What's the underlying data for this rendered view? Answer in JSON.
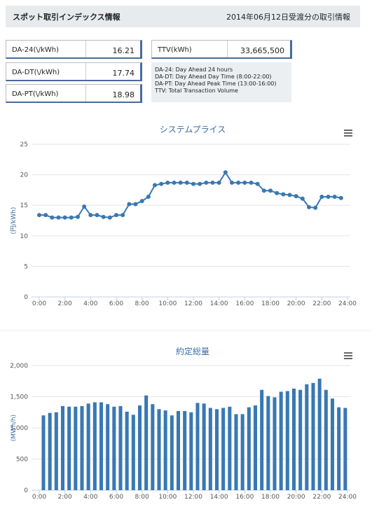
{
  "header": {
    "title": "スポット取引インデックス情報",
    "date": "2014年06月12日受渡分の取引情報"
  },
  "indices": [
    {
      "label": "DA-24(\\/kWh)",
      "value": "16.21"
    },
    {
      "label": "DA-DT(\\/kWh)",
      "value": "17.74"
    },
    {
      "label": "DA-PT(\\/kWh)",
      "value": "18.98"
    }
  ],
  "ttv": {
    "label": "TTV(kWh)",
    "value": "33,665,500"
  },
  "notes": [
    "DA-24: Day Ahead 24 hours",
    "DA-DT: Day Ahead Day Time (8:00-22:00)",
    "DA-PT: Day Ahead Peak Time (13:00-16:00)",
    "TTV: Total Transaction Volume"
  ],
  "chart_data": [
    {
      "type": "line",
      "title": "システムプライス",
      "ylabel": "(円/kWh)",
      "color": "#3878b4",
      "grid": true,
      "x": [
        0,
        0.5,
        1,
        1.5,
        2,
        2.5,
        3,
        3.5,
        4,
        4.5,
        5,
        5.5,
        6,
        6.5,
        7,
        7.5,
        8,
        8.5,
        9,
        9.5,
        10,
        10.5,
        11,
        11.5,
        12,
        12.5,
        13,
        13.5,
        14,
        14.5,
        15,
        15.5,
        16,
        16.5,
        17,
        17.5,
        18,
        18.5,
        19,
        19.5,
        20,
        20.5,
        21,
        21.5,
        22,
        22.5,
        23,
        23.5
      ],
      "values": [
        13.4,
        13.4,
        13.0,
        13.0,
        13.0,
        13.0,
        13.1,
        14.8,
        13.4,
        13.4,
        13.1,
        13.0,
        13.4,
        13.4,
        15.2,
        15.2,
        15.7,
        16.4,
        18.3,
        18.5,
        18.7,
        18.7,
        18.7,
        18.7,
        18.5,
        18.5,
        18.7,
        18.7,
        18.7,
        20.4,
        18.7,
        18.7,
        18.7,
        18.7,
        18.5,
        17.4,
        17.4,
        17.0,
        16.8,
        16.7,
        16.5,
        16.1,
        14.7,
        14.6,
        16.4,
        16.4,
        16.4,
        16.2
      ],
      "xlim": [
        0,
        24
      ],
      "xticks": [
        {
          "value": 0,
          "label": "0:00"
        },
        {
          "value": 2,
          "label": "2:00"
        },
        {
          "value": 4,
          "label": "4:00"
        },
        {
          "value": 6,
          "label": "6:00"
        },
        {
          "value": 8,
          "label": "8:00"
        },
        {
          "value": 10,
          "label": "10:00"
        },
        {
          "value": 12,
          "label": "12:00"
        },
        {
          "value": 14,
          "label": "14:00"
        },
        {
          "value": 16,
          "label": "16:00"
        },
        {
          "value": 18,
          "label": "18:00"
        },
        {
          "value": 20,
          "label": "20:00"
        },
        {
          "value": 22,
          "label": "22:00"
        },
        {
          "value": 24,
          "label": "24:00"
        }
      ],
      "ylim": [
        0,
        25
      ],
      "yticks": [
        0,
        5,
        10,
        15,
        20,
        25
      ]
    },
    {
      "type": "bar",
      "title": "約定総量",
      "ylabel": "(MWh/h)",
      "color": "#3878b4",
      "grid": true,
      "x": [
        0,
        0.5,
        1,
        1.5,
        2,
        2.5,
        3,
        3.5,
        4,
        4.5,
        5,
        5.5,
        6,
        6.5,
        7,
        7.5,
        8,
        8.5,
        9,
        9.5,
        10,
        10.5,
        11,
        11.5,
        12,
        12.5,
        13,
        13.5,
        14,
        14.5,
        15,
        15.5,
        16,
        16.5,
        17,
        17.5,
        18,
        18.5,
        19,
        19.5,
        20,
        20.5,
        21,
        21.5,
        22,
        22.5,
        23,
        23.5
      ],
      "values": [
        1200,
        1240,
        1250,
        1350,
        1340,
        1340,
        1350,
        1390,
        1410,
        1410,
        1380,
        1340,
        1350,
        1260,
        1210,
        1360,
        1520,
        1380,
        1300,
        1280,
        1200,
        1270,
        1270,
        1250,
        1400,
        1390,
        1320,
        1300,
        1320,
        1340,
        1220,
        1220,
        1330,
        1360,
        1610,
        1510,
        1490,
        1580,
        1590,
        1630,
        1610,
        1700,
        1720,
        1790,
        1610,
        1470,
        1330,
        1320
      ],
      "xlim": [
        0,
        24
      ],
      "xticks": [
        {
          "value": 0,
          "label": "0:00"
        },
        {
          "value": 2,
          "label": "2:00"
        },
        {
          "value": 4,
          "label": "4:00"
        },
        {
          "value": 6,
          "label": "6:00"
        },
        {
          "value": 8,
          "label": "8:00"
        },
        {
          "value": 10,
          "label": "10:00"
        },
        {
          "value": 12,
          "label": "12:00"
        },
        {
          "value": 14,
          "label": "14:00"
        },
        {
          "value": 16,
          "label": "16:00"
        },
        {
          "value": 18,
          "label": "18:00"
        },
        {
          "value": 20,
          "label": "20:00"
        },
        {
          "value": 22,
          "label": "22:00"
        },
        {
          "value": 24,
          "label": "24:00"
        }
      ],
      "ylim": [
        0,
        2000
      ],
      "yticks": [
        0,
        {
          "value": 500,
          "label": "500"
        },
        {
          "value": 1000,
          "label": "1,000"
        },
        {
          "value": 1500,
          "label": "1,500"
        },
        {
          "value": 2000,
          "label": "2,000"
        }
      ]
    }
  ]
}
